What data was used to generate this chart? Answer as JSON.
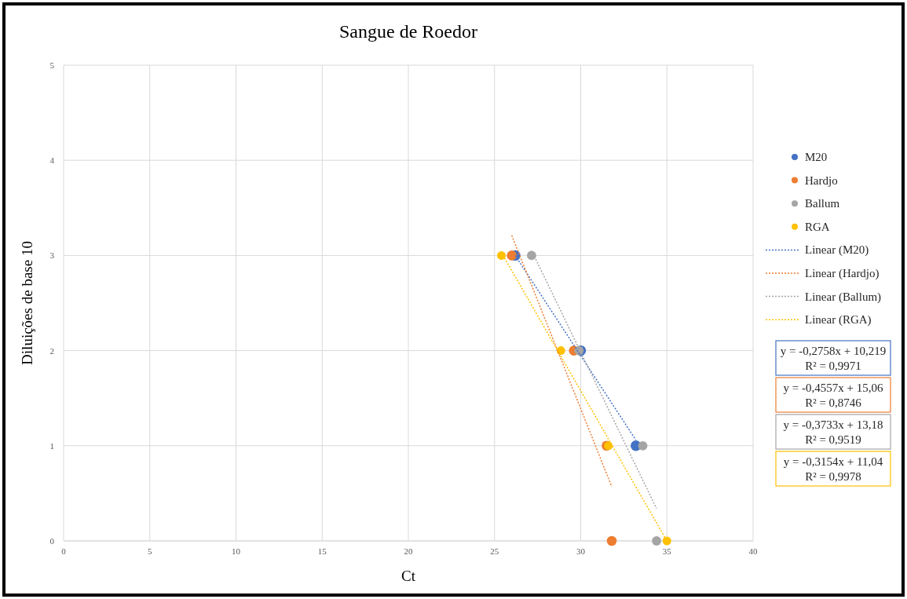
{
  "chart_data": {
    "type": "scatter",
    "title": "Sangue de Roedor",
    "xlabel": "Ct",
    "ylabel": "Diluições de base 10",
    "xlim": [
      0,
      40
    ],
    "xticks": [
      0,
      5,
      10,
      15,
      20,
      25,
      30,
      35,
      40
    ],
    "ylim": [
      0,
      5
    ],
    "yticks": [
      0,
      1,
      2,
      3,
      4,
      5
    ],
    "grid": true,
    "legend": "right",
    "marker": "circle",
    "series": [
      {
        "name": "M20",
        "color": "#4472c4",
        "x": [
          26.2,
          30.0,
          33.2
        ],
        "values": [
          3,
          2,
          1
        ]
      },
      {
        "name": "Hardjo",
        "color": "#ed7d31",
        "x": [
          26.0,
          29.6,
          31.5,
          31.8
        ],
        "values": [
          3,
          2,
          1,
          0
        ]
      },
      {
        "name": "Ballum",
        "color": "#a5a5a5",
        "x": [
          27.15,
          29.9,
          33.6,
          34.4
        ],
        "values": [
          3,
          2,
          1,
          0
        ]
      },
      {
        "name": "RGA",
        "color": "#ffc000",
        "x": [
          25.4,
          28.85,
          31.6,
          35.0
        ],
        "values": [
          3,
          2,
          1,
          0
        ]
      },
      {
        "name": "Linear (M20)",
        "type": "line",
        "line_style": "dotted",
        "marker": "none",
        "color": "#4472c4",
        "x": [
          26.2,
          33.2
        ],
        "values": [
          3.0,
          1.06
        ]
      },
      {
        "name": "Linear (Hardjo)",
        "type": "line",
        "line_style": "dotted",
        "marker": "none",
        "color": "#ed7d31",
        "x": [
          26.0,
          31.8
        ],
        "values": [
          3.21,
          0.57
        ]
      },
      {
        "name": "Linear (Ballum)",
        "type": "line",
        "line_style": "dotted",
        "marker": "none",
        "color": "#a5a5a5",
        "x": [
          27.15,
          34.4
        ],
        "values": [
          3.05,
          0.34
        ]
      },
      {
        "name": "Linear (RGA)",
        "type": "line",
        "line_style": "dotted",
        "marker": "none",
        "color": "#ffc000",
        "x": [
          25.4,
          35.0
        ],
        "values": [
          3.03,
          0.0
        ]
      }
    ],
    "annotations": [
      "y = -0,2758x + 10,219\nR² = 0,9971",
      "y = -0,4557x + 15,06\nR² = 0,8746",
      "y = -0,3733x + 13,18\nR² = 0,9519",
      "y = -0,3154x + 11,04\nR² = 0,9978"
    ]
  }
}
